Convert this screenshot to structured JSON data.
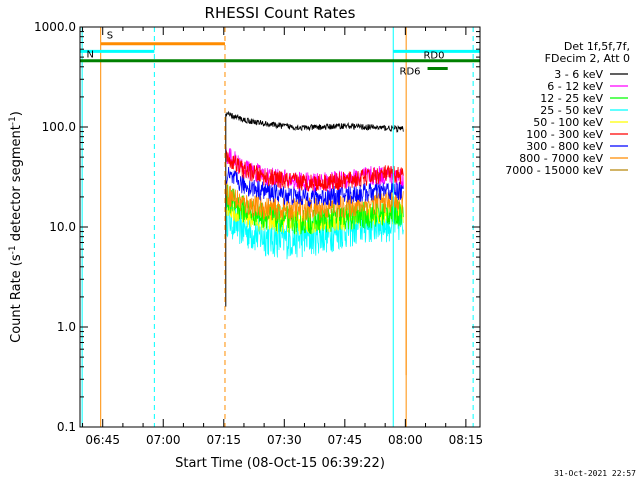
{
  "chart_data": {
    "type": "line",
    "title": "RHESSI Count Rates",
    "xlabel": "Start Time (08-Oct-15 06:39:22)",
    "ylabel_main": "Count Rate (s",
    "ylabel_sup1": "-1",
    "ylabel_mid": " detector segment",
    "ylabel_sup2": "-1",
    "ylabel_end": ")",
    "y_scale": "log",
    "xlim_minutes": [
      39.37,
      138.5
    ],
    "ylim": [
      0.1,
      1000
    ],
    "x_ticks": [
      {
        "label": "06:45",
        "minutes": 45
      },
      {
        "label": "07:00",
        "minutes": 60
      },
      {
        "label": "07:15",
        "minutes": 75
      },
      {
        "label": "07:30",
        "minutes": 90
      },
      {
        "label": "07:45",
        "minutes": 105
      },
      {
        "label": "08:00",
        "minutes": 120
      },
      {
        "label": "08:15",
        "minutes": 135
      }
    ],
    "y_ticks": [
      {
        "label": "0.1",
        "value": 0.1
      },
      {
        "label": "1.0",
        "value": 1
      },
      {
        "label": "10.0",
        "value": 10
      },
      {
        "label": "100.0",
        "value": 100
      },
      {
        "label": "1000.0",
        "value": 1000
      }
    ],
    "legend": {
      "position": "right",
      "header": [
        "Det 1f,5f,7f,",
        "FDecim 2, Att 0"
      ]
    },
    "series": [
      {
        "name": "3 - 6 keV",
        "color": "#000000",
        "points": [
          [
            75.5,
            135
          ],
          [
            80,
            118
          ],
          [
            85,
            108
          ],
          [
            90,
            102
          ],
          [
            95,
            98
          ],
          [
            100,
            100
          ],
          [
            105,
            103
          ],
          [
            110,
            100
          ],
          [
            115,
            98
          ],
          [
            119.5,
            95
          ]
        ]
      },
      {
        "name": "6 - 12 keV",
        "color": "#ff00ff",
        "points": [
          [
            75.5,
            55
          ],
          [
            80,
            38
          ],
          [
            85,
            33
          ],
          [
            90,
            30
          ],
          [
            95,
            28
          ],
          [
            100,
            28
          ],
          [
            105,
            30
          ],
          [
            110,
            32
          ],
          [
            115,
            33
          ],
          [
            119.5,
            32
          ]
        ]
      },
      {
        "name": "12 - 25 keV",
        "color": "#00ff00",
        "points": [
          [
            75.5,
            20
          ],
          [
            80,
            15
          ],
          [
            85,
            13
          ],
          [
            90,
            12
          ],
          [
            95,
            11.5
          ],
          [
            100,
            12
          ],
          [
            105,
            12.5
          ],
          [
            110,
            13
          ],
          [
            115,
            14
          ],
          [
            119.5,
            14
          ]
        ]
      },
      {
        "name": "25 - 50 keV",
        "color": "#00ffff",
        "points": [
          [
            75.5,
            13
          ],
          [
            80,
            9.5
          ],
          [
            85,
            8
          ],
          [
            90,
            7.5
          ],
          [
            95,
            7.8
          ],
          [
            100,
            8.5
          ],
          [
            105,
            9.5
          ],
          [
            110,
            10.5
          ],
          [
            115,
            11
          ],
          [
            119.5,
            11
          ]
        ]
      },
      {
        "name": "50 - 100 keV",
        "color": "#ffff00",
        "points": [
          [
            75.5,
            17
          ],
          [
            80,
            13
          ],
          [
            85,
            11.5
          ],
          [
            90,
            11
          ],
          [
            95,
            11
          ],
          [
            100,
            11.5
          ],
          [
            105,
            12
          ],
          [
            110,
            13
          ],
          [
            115,
            14
          ],
          [
            119.5,
            14
          ]
        ]
      },
      {
        "name": "100 - 300 keV",
        "color": "#ff0000",
        "points": [
          [
            75.5,
            50
          ],
          [
            80,
            37
          ],
          [
            85,
            32
          ],
          [
            90,
            29
          ],
          [
            95,
            28
          ],
          [
            100,
            28
          ],
          [
            105,
            29
          ],
          [
            110,
            31
          ],
          [
            115,
            34
          ],
          [
            119.5,
            33
          ]
        ]
      },
      {
        "name": "300 - 800 keV",
        "color": "#0000ff",
        "points": [
          [
            75.5,
            33
          ],
          [
            80,
            26
          ],
          [
            85,
            23
          ],
          [
            90,
            21
          ],
          [
            95,
            20
          ],
          [
            100,
            20
          ],
          [
            105,
            21
          ],
          [
            110,
            22
          ],
          [
            115,
            23
          ],
          [
            119.5,
            23
          ]
        ]
      },
      {
        "name": "800 - 7000 keV",
        "color": "#ff8c00",
        "points": [
          [
            75.5,
            22
          ],
          [
            80,
            17
          ],
          [
            85,
            15.5
          ],
          [
            90,
            15
          ],
          [
            95,
            15
          ],
          [
            100,
            15.5
          ],
          [
            105,
            16
          ],
          [
            110,
            17
          ],
          [
            115,
            18
          ],
          [
            119.5,
            18
          ]
        ]
      },
      {
        "name": "7000 - 15000 keV",
        "color": "#b8860b",
        "points": []
      }
    ],
    "attenuator_bars": [
      {
        "label": "S",
        "color": "#ff8c00",
        "y_value": 680,
        "x_start": 44.5,
        "x_end": 75.3
      },
      {
        "label": "N",
        "color": "#00ffff",
        "y_value": 570,
        "x_start": 39.5,
        "x_end": 57.8
      },
      {
        "label": "",
        "color": "#008000",
        "y_value": 460,
        "x_start": 39.37,
        "x_end": 138.5
      },
      {
        "label": "",
        "color": "#00ffff",
        "y_value": 570,
        "x_start": 117,
        "x_end": 138.5
      },
      {
        "label": "RD0",
        "color": "",
        "y_value": 460,
        "x_start": 123,
        "x_end": 123
      },
      {
        "label": "RD6",
        "color": "#008000",
        "y_value": 385,
        "x_start": 125.5,
        "x_end": 130.5
      }
    ],
    "vertical_lines": [
      {
        "minutes": 39.9,
        "color": "#00ffff",
        "dashed": false
      },
      {
        "minutes": 44.5,
        "color": "#ff8c00",
        "dashed": false
      },
      {
        "minutes": 57.8,
        "color": "#00ffff",
        "dashed": true
      },
      {
        "minutes": 75.3,
        "color": "#ff8c00",
        "dashed": true
      },
      {
        "minutes": 117,
        "color": "#00ffff",
        "dashed": false
      },
      {
        "minutes": 120.2,
        "color": "#ff8c00",
        "dashed": false
      },
      {
        "minutes": 136.8,
        "color": "#00ffff",
        "dashed": true
      }
    ],
    "timestamp": "31-Oct-2021 22:57"
  }
}
